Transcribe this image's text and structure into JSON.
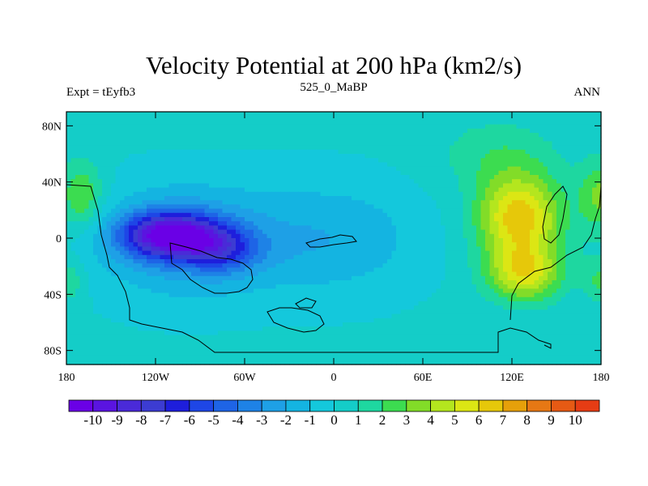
{
  "chart_data": {
    "type": "heatmap",
    "title": "Velocity Potential at 200 hPa (km2/s)",
    "left_string": "Expt = tEyfb3",
    "center_string": "525_0_MaBP",
    "right_string": "ANN",
    "xlim": [
      -180,
      180
    ],
    "ylim": [
      -90,
      90
    ],
    "x_ticks": [
      {
        "value": -180,
        "label": "180"
      },
      {
        "value": -120,
        "label": "120W"
      },
      {
        "value": -60,
        "label": "60W"
      },
      {
        "value": 0,
        "label": "0"
      },
      {
        "value": 60,
        "label": "60E"
      },
      {
        "value": 120,
        "label": "120E"
      },
      {
        "value": 180,
        "label": "180"
      }
    ],
    "y_ticks": [
      {
        "value": 80,
        "label": "80N"
      },
      {
        "value": 40,
        "label": "40N"
      },
      {
        "value": 0,
        "label": "0"
      },
      {
        "value": -40,
        "label": "40S"
      },
      {
        "value": -80,
        "label": "80S"
      }
    ],
    "colorbar": {
      "levels": [
        -10,
        -9,
        -8,
        -7,
        -6,
        -5,
        -4,
        -3,
        -2,
        -1,
        0,
        1,
        2,
        3,
        4,
        5,
        6,
        7,
        8,
        9,
        10
      ],
      "labels": [
        "-10",
        "-9",
        "-8",
        "-7",
        "-6",
        "-5",
        "-4",
        "-3",
        "-2",
        "-1",
        "0",
        "1",
        "2",
        "3",
        "4",
        "5",
        "6",
        "7",
        "8",
        "9",
        "10"
      ],
      "colors": [
        "#6a00e6",
        "#5a14e0",
        "#4a2ad8",
        "#3c3cd2",
        "#1e1edc",
        "#1e46e6",
        "#1e64e6",
        "#1e82e6",
        "#1ea0e6",
        "#14b4e1",
        "#14c8dc",
        "#14cdc8",
        "#1ed7a0",
        "#3cdc50",
        "#82dc28",
        "#b4e61e",
        "#dce614",
        "#e6c80a",
        "#e6a00a",
        "#e67814",
        "#e65a14",
        "#e63c14"
      ]
    },
    "centers": [
      {
        "lon": -110,
        "lat": 2,
        "amp": -9.5,
        "sx": 32,
        "sy": 16
      },
      {
        "lon": -75,
        "lat": -8,
        "amp": -4,
        "sx": 25,
        "sy": 16
      },
      {
        "lon": -100,
        "lat": -2,
        "amp": -3,
        "sx": 60,
        "sy": 40
      },
      {
        "lon": -170,
        "lat": 30,
        "amp": 3,
        "sx": 15,
        "sy": 25
      },
      {
        "lon": -180,
        "lat": -30,
        "amp": 2,
        "sx": 12,
        "sy": 15
      },
      {
        "lon": 180,
        "lat": 30,
        "amp": 3,
        "sx": 15,
        "sy": 25
      },
      {
        "lon": 180,
        "lat": -30,
        "amp": 2,
        "sx": 12,
        "sy": 15
      },
      {
        "lon": 125,
        "lat": 15,
        "amp": 6.5,
        "sx": 28,
        "sy": 30
      },
      {
        "lon": 128,
        "lat": -25,
        "amp": 5,
        "sx": 25,
        "sy": 20
      },
      {
        "lon": 110,
        "lat": 60,
        "amp": 1.5,
        "sx": 40,
        "sy": 25
      },
      {
        "lon": 0,
        "lat": 0,
        "amp": -2,
        "sx": 60,
        "sy": 40
      }
    ]
  }
}
